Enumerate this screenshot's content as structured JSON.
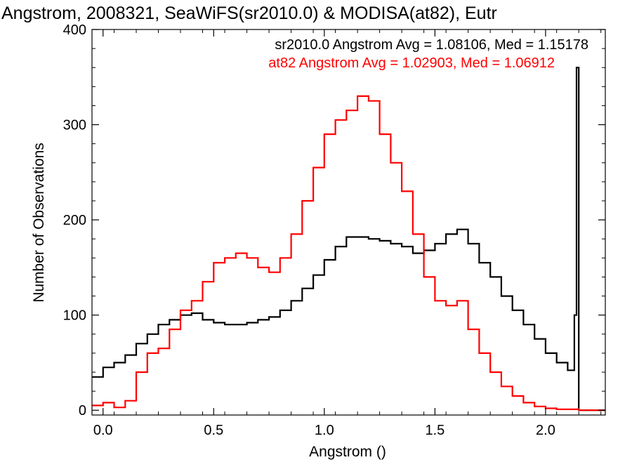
{
  "chart_data": {
    "type": "line",
    "title": "Angstrom, 2008321, SeaWiFS(sr2010.0) & MODISA(at82), Eutr",
    "xlabel": "Angstrom ()",
    "ylabel": "Number of Observations",
    "xlim": [
      -0.05,
      2.27
    ],
    "ylim": [
      -5,
      400
    ],
    "x_ticks": [
      "0.0",
      "0.5",
      "1.0",
      "1.5",
      "2.0"
    ],
    "y_ticks": [
      "0",
      "100",
      "200",
      "300",
      "400"
    ],
    "grid": false,
    "step": true,
    "annotations": [
      {
        "text": "sr2010.0 Angstrom Avg = 1.08106, Med = 1.15178",
        "color": "#000000"
      },
      {
        "text": "at82 Angstrom Avg = 1.02903, Med = 1.06912",
        "color": "#ff0000"
      }
    ],
    "series": [
      {
        "name": "sr2010.0",
        "color": "#000000",
        "x": [
          -0.05,
          0.0,
          0.05,
          0.1,
          0.15,
          0.2,
          0.25,
          0.3,
          0.35,
          0.4,
          0.45,
          0.5,
          0.55,
          0.6,
          0.65,
          0.7,
          0.75,
          0.8,
          0.85,
          0.9,
          0.95,
          1.0,
          1.05,
          1.1,
          1.15,
          1.2,
          1.25,
          1.3,
          1.35,
          1.4,
          1.45,
          1.5,
          1.55,
          1.6,
          1.65,
          1.7,
          1.75,
          1.8,
          1.85,
          1.9,
          1.95,
          2.0,
          2.05,
          2.1,
          2.13,
          2.14,
          2.15,
          2.16,
          2.27
        ],
        "y": [
          35,
          45,
          50,
          58,
          70,
          80,
          90,
          95,
          100,
          102,
          95,
          92,
          90,
          90,
          92,
          95,
          98,
          105,
          115,
          128,
          142,
          158,
          172,
          182,
          182,
          180,
          178,
          175,
          172,
          165,
          168,
          175,
          185,
          190,
          175,
          155,
          140,
          120,
          105,
          90,
          75,
          60,
          50,
          42,
          100,
          360,
          0,
          0,
          0
        ]
      },
      {
        "name": "at82",
        "color": "#ff0000",
        "x": [
          -0.05,
          0.0,
          0.05,
          0.1,
          0.15,
          0.2,
          0.25,
          0.3,
          0.35,
          0.4,
          0.45,
          0.5,
          0.55,
          0.6,
          0.65,
          0.7,
          0.75,
          0.8,
          0.85,
          0.9,
          0.95,
          1.0,
          1.05,
          1.1,
          1.15,
          1.2,
          1.25,
          1.3,
          1.35,
          1.4,
          1.45,
          1.5,
          1.55,
          1.6,
          1.65,
          1.7,
          1.75,
          1.8,
          1.85,
          1.9,
          1.95,
          2.0,
          2.05,
          2.1,
          2.15,
          2.27
        ],
        "y": [
          5,
          8,
          3,
          10,
          40,
          60,
          65,
          85,
          105,
          115,
          135,
          155,
          160,
          165,
          160,
          150,
          145,
          160,
          185,
          220,
          255,
          290,
          305,
          315,
          330,
          325,
          290,
          260,
          230,
          185,
          140,
          115,
          110,
          115,
          85,
          60,
          40,
          25,
          15,
          8,
          4,
          2,
          1,
          1,
          0,
          0
        ]
      }
    ]
  }
}
